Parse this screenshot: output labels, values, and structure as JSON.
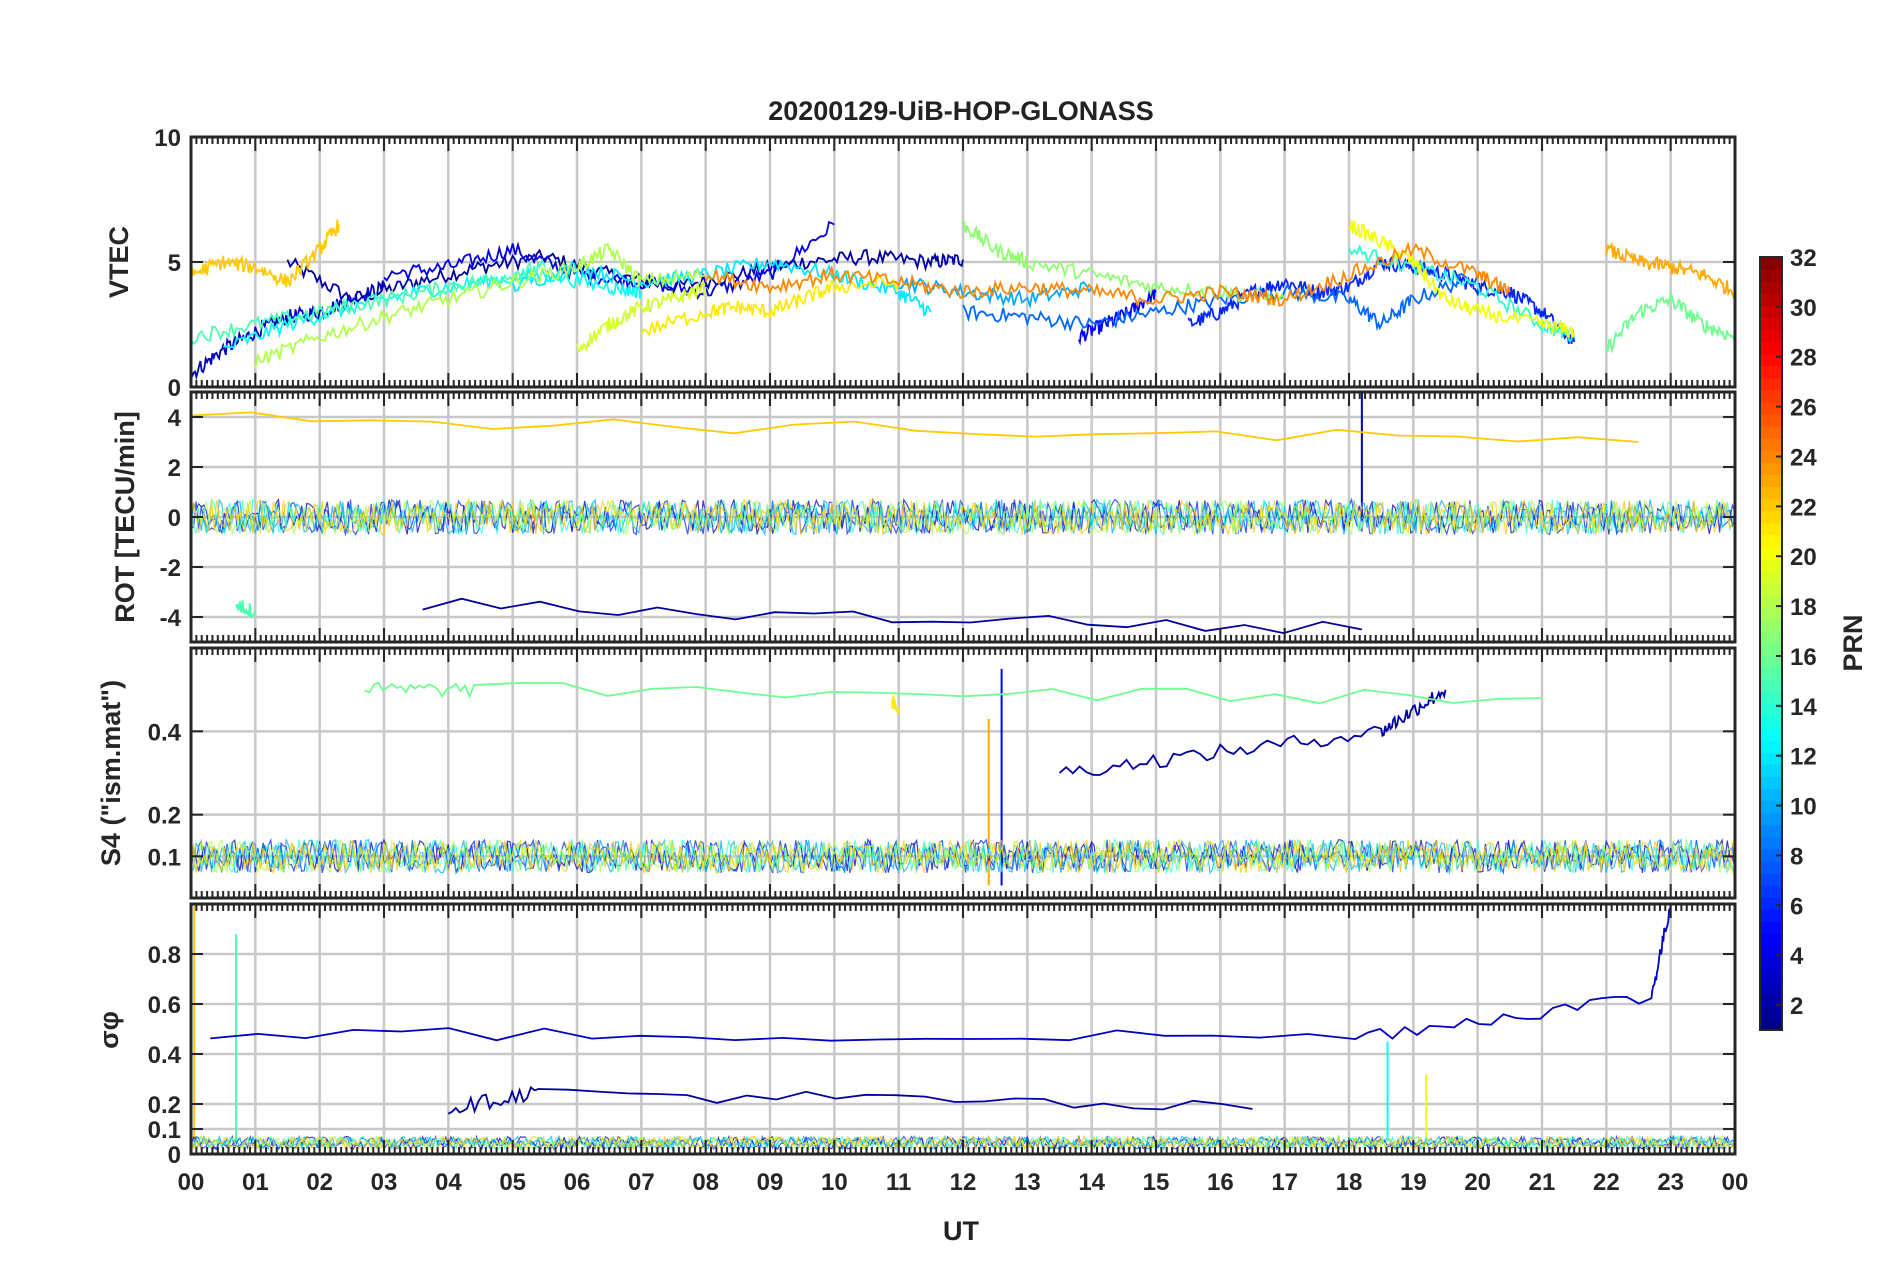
{
  "chart_data": {
    "title": "20200129-UiB-HOP-GLONASS",
    "xlabel": "UT",
    "x_ticks": [
      "00",
      "01",
      "02",
      "03",
      "04",
      "05",
      "06",
      "07",
      "08",
      "09",
      "10",
      "11",
      "12",
      "13",
      "14",
      "15",
      "16",
      "17",
      "18",
      "19",
      "20",
      "21",
      "22",
      "23",
      "00"
    ],
    "x_range_hours": [
      0,
      24
    ],
    "grid": true,
    "panels": [
      {
        "id": "vtec",
        "type": "line",
        "ylabel": "VTEC",
        "ylim": [
          0,
          10
        ],
        "y_ticks": [
          0,
          5,
          10
        ],
        "series": [
          {
            "prn": 2,
            "x": [
              1.5,
              2.5,
              3.5,
              4.5,
              5.5,
              6.5,
              7.5,
              8.5,
              9.5,
              10.5,
              11.5,
              12.0
            ],
            "y": [
              5.0,
              3.5,
              4.2,
              4.8,
              5.2,
              4.5,
              4.0,
              4.5,
              5.0,
              5.2,
              5.0,
              5.1
            ]
          },
          {
            "prn": 3,
            "x": [
              0.0,
              0.5,
              1.0,
              1.5,
              2.0,
              2.5,
              3.0
            ],
            "y": [
              0.5,
              1.5,
              2.2,
              2.8,
              3.0,
              3.5,
              4.0
            ]
          },
          {
            "prn": 4,
            "x": [
              3.0,
              4.0,
              5.0,
              6.0,
              7.0,
              8.0,
              9.0,
              10.0
            ],
            "y": [
              4.5,
              4.8,
              5.5,
              4.5,
              4.2,
              3.8,
              4.5,
              6.5
            ]
          },
          {
            "prn": 5,
            "x": [
              13.8,
              14.2,
              14.6,
              15.0
            ],
            "y": [
              2.0,
              2.5,
              3.0,
              3.8
            ]
          },
          {
            "prn": 6,
            "x": [
              15.5,
              16.0,
              16.5,
              17.0,
              17.5,
              18.0,
              18.5,
              19.0,
              19.5,
              20.0,
              20.5,
              21.0,
              21.5
            ],
            "y": [
              2.5,
              3.0,
              3.8,
              4.2,
              3.8,
              4.0,
              5.0,
              4.8,
              4.5,
              4.0,
              3.8,
              3.0,
              1.8
            ]
          },
          {
            "prn": 8,
            "x": [
              12.0,
              13.0,
              14.0,
              15.0,
              16.0,
              17.0,
              18.0,
              18.5,
              19.0,
              20.0
            ],
            "y": [
              3.0,
              2.8,
              2.5,
              3.0,
              3.5,
              3.8,
              3.5,
              2.5,
              3.5,
              4.5
            ]
          },
          {
            "prn": 10,
            "x": [
              11.0,
              12.0,
              13.0,
              14.0
            ],
            "y": [
              4.2,
              3.8,
              3.5,
              4.0
            ]
          },
          {
            "prn": 12,
            "x": [
              5.0,
              6.0,
              7.0,
              8.0,
              9.0,
              10.0,
              11.0,
              11.5
            ],
            "y": [
              4.0,
              4.8,
              4.2,
              4.5,
              5.0,
              4.5,
              3.8,
              3.0
            ]
          },
          {
            "prn": 13,
            "x": [
              0.5,
              1.5,
              2.5,
              3.5,
              4.5,
              5.5,
              6.5,
              7.0
            ],
            "y": [
              1.5,
              2.5,
              3.2,
              3.8,
              4.2,
              4.5,
              4.0,
              3.8
            ]
          },
          {
            "prn": 14,
            "x": [
              18.0,
              19.0,
              20.0,
              21.0,
              21.5
            ],
            "y": [
              5.5,
              4.8,
              4.0,
              2.5,
              2.0
            ]
          },
          {
            "prn": 15,
            "x": [
              0.0,
              1.0,
              2.0,
              3.0,
              4.0,
              5.0,
              5.5
            ],
            "y": [
              2.0,
              2.5,
              3.0,
              3.5,
              4.0,
              4.5,
              4.8
            ]
          },
          {
            "prn": 16,
            "x": [
              22.0,
              22.5,
              23.0,
              23.5,
              24.0
            ],
            "y": [
              1.5,
              3.0,
              3.5,
              2.5,
              2.0
            ]
          },
          {
            "prn": 17,
            "x": [
              12.0,
              12.5,
              13.0,
              14.0,
              15.0,
              16.0,
              17.0
            ],
            "y": [
              6.5,
              5.5,
              5.0,
              4.5,
              4.0,
              3.8,
              3.5
            ]
          },
          {
            "prn": 18,
            "x": [
              1.0,
              2.0,
              3.0,
              4.0,
              5.0,
              6.0,
              6.5,
              7.0,
              8.0
            ],
            "y": [
              1.0,
              2.0,
              2.8,
              3.5,
              4.2,
              4.8,
              5.5,
              4.2,
              4.5
            ]
          },
          {
            "prn": 19,
            "x": [
              6.0,
              6.5,
              7.0,
              7.5,
              8.0
            ],
            "y": [
              1.5,
              2.5,
              3.2,
              3.5,
              4.0
            ]
          },
          {
            "prn": 20,
            "x": [
              18.0,
              18.5,
              19.0,
              19.5,
              20.0,
              21.0,
              21.5
            ],
            "y": [
              6.5,
              5.8,
              5.0,
              3.5,
              3.0,
              2.5,
              2.2
            ]
          },
          {
            "prn": 21,
            "x": [
              7.0,
              8.0,
              8.5,
              9.0,
              9.5,
              10.0,
              11.0
            ],
            "y": [
              2.2,
              3.0,
              3.2,
              3.0,
              3.5,
              4.0,
              4.2
            ]
          },
          {
            "prn": 22,
            "x": [
              0.0,
              0.5,
              1.0,
              1.5,
              2.0,
              2.3
            ],
            "y": [
              4.5,
              5.0,
              4.8,
              4.2,
              5.5,
              6.5
            ]
          },
          {
            "prn": 23,
            "x": [
              22.0,
              22.5,
              23.0,
              23.5,
              24.0
            ],
            "y": [
              5.5,
              5.0,
              4.8,
              4.5,
              3.8
            ]
          },
          {
            "prn": 24,
            "x": [
              8.0,
              9.0,
              10.0,
              11.0,
              12.0,
              13.0,
              14.0,
              15.0,
              16.0,
              17.0,
              18.0,
              19.0,
              20.0,
              20.5
            ],
            "y": [
              4.5,
              4.0,
              4.5,
              4.2,
              3.8,
              4.0,
              3.8,
              3.5,
              3.8,
              3.5,
              4.5,
              5.5,
              4.5,
              3.8
            ]
          }
        ]
      },
      {
        "id": "rot",
        "type": "line",
        "ylabel": "ROT [TECU/min]",
        "ylim": [
          -5,
          5
        ],
        "y_ticks": [
          -4,
          -2,
          0,
          2,
          4
        ],
        "series": [
          {
            "prn": 2,
            "x": [
              3.6,
              18.2
            ],
            "y": [
              -3.5,
              -4.5
            ]
          },
          {
            "prn": 3,
            "x": [
              18.2
            ],
            "y": [
              5.0
            ]
          },
          {
            "prn": 15,
            "x": [
              0.7,
              1.0
            ],
            "y": [
              -3.5,
              -3.8
            ]
          },
          {
            "prn": 22,
            "x": [
              0.0,
              22.5
            ],
            "y": [
              4.0,
              3.0
            ]
          }
        ]
      },
      {
        "id": "s4",
        "type": "line",
        "ylabel": "S4 (\"ism.mat\")",
        "ylim": [
          0,
          0.6
        ],
        "y_ticks": [
          0.1,
          0.2,
          0.4
        ],
        "series": [
          {
            "prn": 2,
            "x": [
              13.5,
              16.0,
              18.5,
              19.0,
              19.5
            ],
            "y": [
              0.3,
              0.35,
              0.4,
              0.45,
              0.5
            ]
          },
          {
            "prn": 5,
            "x": [
              12.6
            ],
            "y": [
              0.55
            ]
          },
          {
            "prn": 16,
            "x": [
              2.7,
              4.4,
              21.0
            ],
            "y": [
              0.5,
              0.5,
              0.48
            ]
          },
          {
            "prn": 21,
            "x": [
              10.9,
              11.0
            ],
            "y": [
              0.47,
              0.45
            ]
          },
          {
            "prn": 23,
            "x": [
              12.4
            ],
            "y": [
              0.43
            ]
          }
        ]
      },
      {
        "id": "sigma_phi",
        "type": "line",
        "ylabel": "σφ",
        "ylim": [
          0,
          1.0
        ],
        "y_ticks": [
          0,
          0.1,
          0.2,
          0.4,
          0.6,
          0.8
        ],
        "series": [
          {
            "prn": 22,
            "x": [
              0.05
            ],
            "y": [
              1.0
            ]
          },
          {
            "prn": 15,
            "x": [
              0.7
            ],
            "y": [
              0.88
            ]
          },
          {
            "prn": 3,
            "x": [
              0.3,
              18.1,
              22.7,
              23.0
            ],
            "y": [
              0.48,
              0.47,
              0.63,
              1.0
            ]
          },
          {
            "prn": 13,
            "x": [
              18.6
            ],
            "y": [
              0.45
            ]
          },
          {
            "prn": 20,
            "x": [
              19.2
            ],
            "y": [
              0.32
            ]
          },
          {
            "prn": 2,
            "x": [
              4.0,
              5.4,
              16.5
            ],
            "y": [
              0.18,
              0.25,
              0.18
            ]
          }
        ]
      }
    ],
    "colorbar": {
      "label": "PRN",
      "range": [
        1,
        32
      ],
      "ticks": [
        2,
        4,
        6,
        8,
        10,
        12,
        14,
        16,
        18,
        20,
        22,
        24,
        26,
        28,
        30,
        32
      ],
      "colormap": "jet"
    }
  }
}
